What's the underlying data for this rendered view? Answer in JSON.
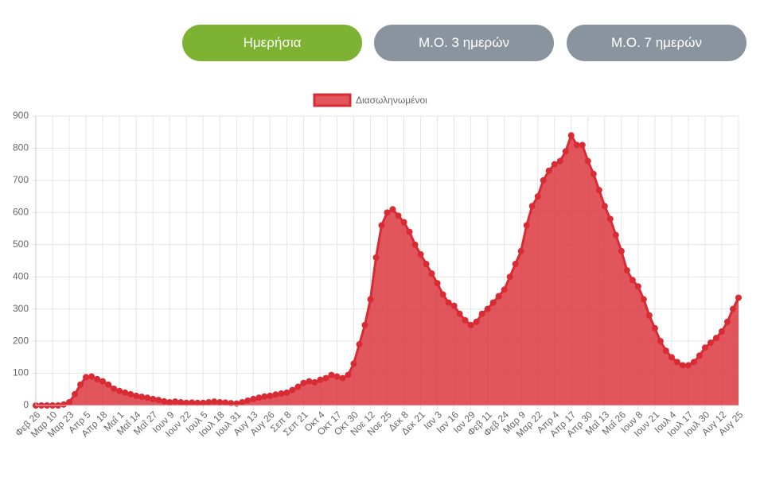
{
  "buttons": [
    "Ημερήσια",
    "Μ.Ο. 3 ημερών",
    "Μ.Ο. 7 ημερών"
  ],
  "chart_data": {
    "type": "area",
    "categories": [
      "Φεβ 26",
      null,
      null,
      "Μαρ 10",
      null,
      null,
      "Μαρ 23",
      null,
      null,
      "Απρ 5",
      null,
      null,
      "Απρ 18",
      null,
      null,
      "Μαΐ 1",
      null,
      null,
      "Μαΐ 14",
      null,
      null,
      "Μαΐ 27",
      null,
      null,
      "Ιουν 9",
      null,
      null,
      "Ιουν 22",
      null,
      null,
      "Ιουλ 5",
      null,
      null,
      "Ιουλ 18",
      null,
      null,
      "Ιουλ 31",
      null,
      null,
      "Αυγ 13",
      null,
      null,
      "Αυγ 26",
      null,
      null,
      "Σεπ 8",
      null,
      null,
      "Σεπ 21",
      null,
      null,
      "Οκτ 4",
      null,
      null,
      "Οκτ 17",
      null,
      null,
      "Οκτ 30",
      null,
      null,
      "Νοε 12",
      null,
      null,
      "Νοε 25",
      null,
      null,
      "Δεκ 8",
      null,
      null,
      "Δεκ 21",
      null,
      null,
      "Ιαν 3",
      null,
      null,
      "Ιαν 16",
      null,
      null,
      "Ιαν 29",
      null,
      null,
      "Φεβ 11",
      null,
      null,
      "Φεβ 24",
      null,
      null,
      "Μαρ 9",
      null,
      null,
      "Μαρ 22",
      null,
      null,
      "Απρ 4",
      null,
      null,
      "Απρ 17",
      null,
      null,
      "Απρ 30",
      null,
      null,
      "Μαΐ 13",
      null,
      null,
      "Μαΐ 26",
      null,
      null,
      "Ιουν 8",
      null,
      null,
      "Ιουν 21",
      null,
      null,
      "Ιουλ 4",
      null,
      null,
      "Ιουλ 17",
      null,
      null,
      "Ιουλ 30",
      null,
      null,
      "Αυγ 12",
      null,
      null,
      "Αυγ 25"
    ],
    "series": [
      {
        "name": "Διασωληνωμένοι",
        "color": "#d92b33",
        "values": [
          0,
          0,
          0,
          0,
          0,
          3,
          10,
          35,
          65,
          88,
          90,
          82,
          75,
          65,
          52,
          45,
          40,
          35,
          30,
          27,
          24,
          20,
          17,
          13,
          10,
          12,
          10,
          8,
          9,
          8,
          8,
          10,
          12,
          10,
          9,
          7,
          6,
          10,
          15,
          20,
          24,
          28,
          30,
          34,
          37,
          40,
          48,
          58,
          70,
          75,
          72,
          80,
          85,
          95,
          90,
          85,
          95,
          130,
          190,
          250,
          330,
          460,
          560,
          600,
          610,
          590,
          570,
          540,
          500,
          470,
          440,
          410,
          380,
          345,
          320,
          310,
          285,
          265,
          250,
          260,
          285,
          300,
          320,
          340,
          360,
          400,
          440,
          480,
          560,
          620,
          650,
          700,
          730,
          750,
          760,
          790,
          840,
          810,
          810,
          760,
          720,
          670,
          620,
          580,
          530,
          480,
          420,
          390,
          370,
          330,
          280,
          240,
          200,
          170,
          150,
          135,
          125,
          125,
          135,
          155,
          180,
          195,
          210,
          230,
          260,
          300,
          335
        ]
      }
    ],
    "ylim": [
      0,
      900
    ],
    "yticks": [
      0,
      100,
      200,
      300,
      400,
      500,
      600,
      700,
      800,
      900
    ],
    "grid": true,
    "legend": "top"
  }
}
